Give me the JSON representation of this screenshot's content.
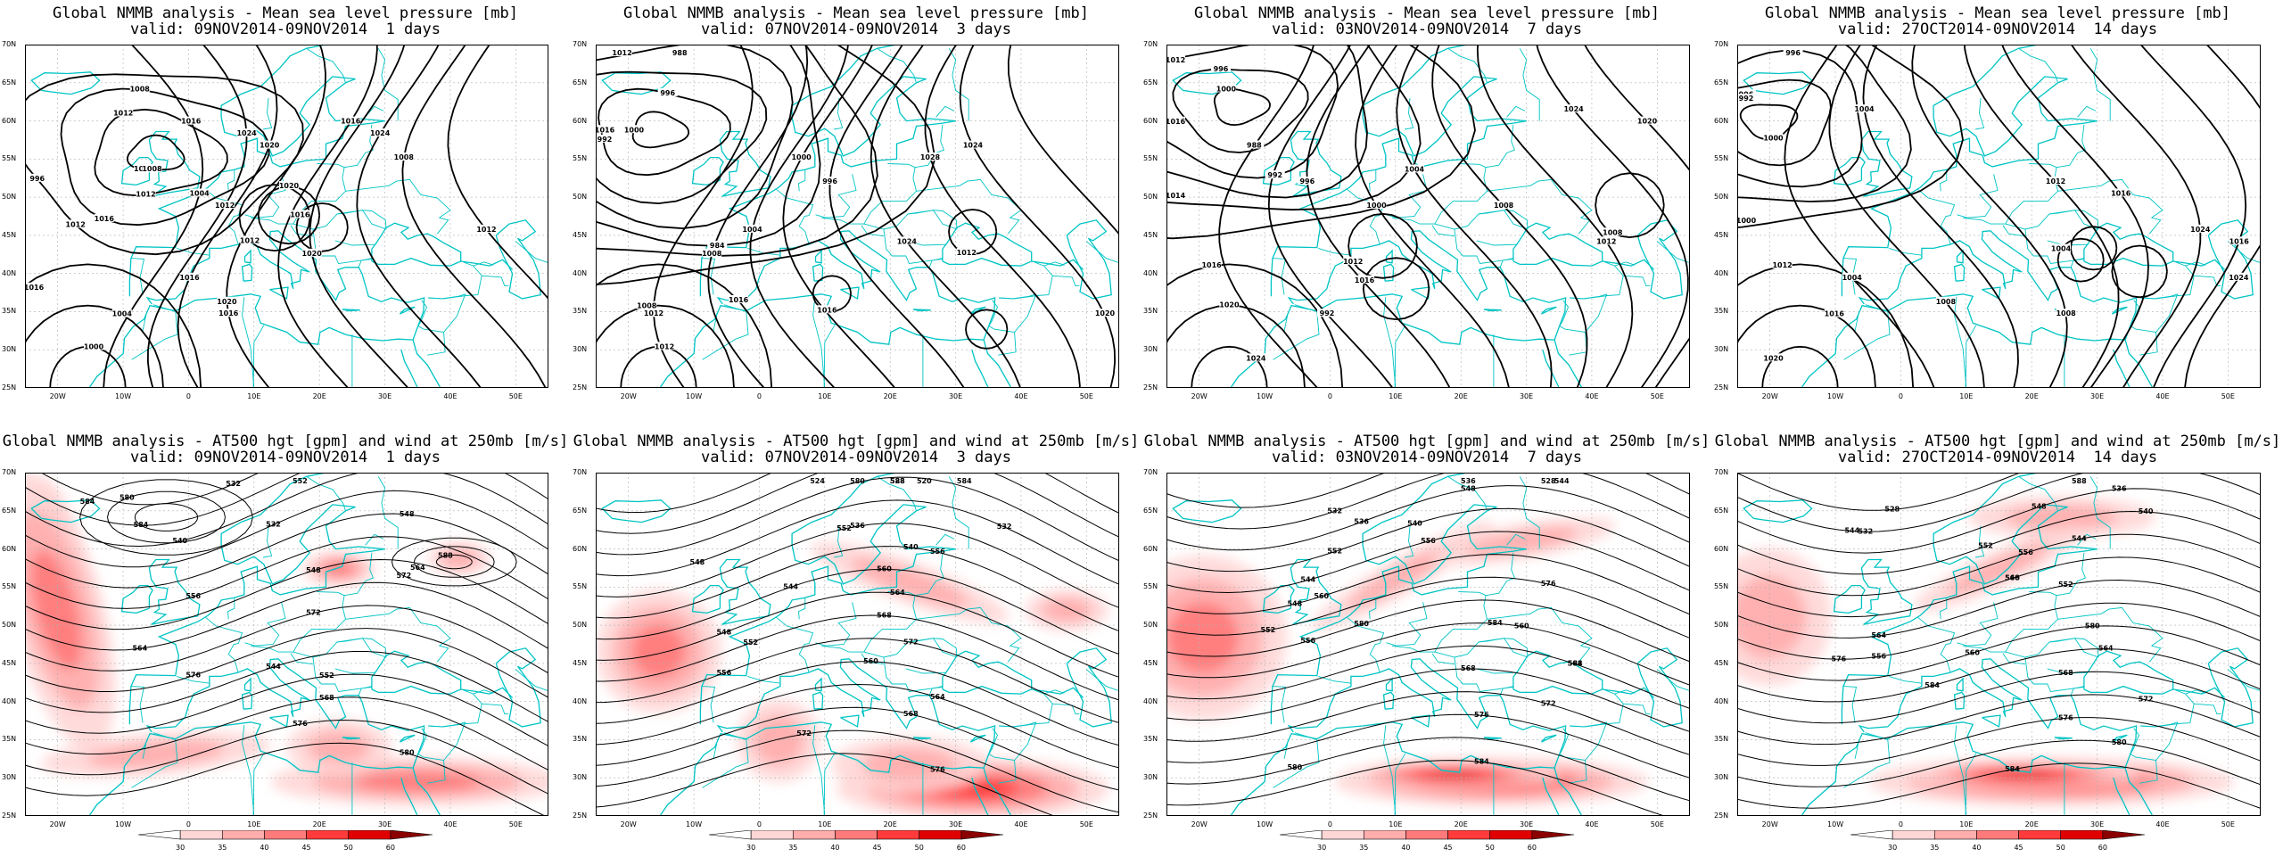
{
  "panels": [
    {
      "kind": "mslp",
      "title": "Global NMMB analysis - Mean sea level pressure [mb]",
      "subtitle": "valid: 09NOV2014-09NOV2014  1 days",
      "labels": [
        "1016",
        "1012",
        "1008",
        "996",
        "1004",
        "1012",
        "1016",
        "1020",
        "1016",
        "1020",
        "1024",
        "1008",
        "1012",
        "1000",
        "1004",
        "1016",
        "1012",
        "1016",
        "1020",
        "1008",
        "1012",
        "1016",
        "1012",
        "1016",
        "1024",
        "1020",
        "1016"
      ]
    },
    {
      "kind": "mslp",
      "title": "Global NMMB analysis - Mean sea level pressure [mb]",
      "subtitle": "valid: 07NOV2014-09NOV2014  3 days",
      "labels": [
        "1000",
        "996",
        "992",
        "988",
        "984",
        "1012",
        "1016",
        "1012",
        "1008",
        "1004",
        "1000",
        "996",
        "1024",
        "1028",
        "1024",
        "1020",
        "1012",
        "1008",
        "1016",
        "1012",
        "1016"
      ]
    },
    {
      "kind": "mslp",
      "title": "Global NMMB analysis - Mean sea level pressure [mb]",
      "subtitle": "valid: 03NOV2014-09NOV2014  7 days",
      "labels": [
        "1000",
        "996",
        "992",
        "1016",
        "1012",
        "1014",
        "988",
        "992",
        "996",
        "1000",
        "1004",
        "1008",
        "1012",
        "1024",
        "1020",
        "1024",
        "1020",
        "1016",
        "1012",
        "1008",
        "1016"
      ]
    },
    {
      "kind": "mslp",
      "title": "Global NMMB analysis - Mean sea level pressure [mb]",
      "subtitle": "valid: 27OCT2014-09NOV2014  14 days",
      "labels": [
        "1000",
        "996",
        "992",
        "996",
        "1000",
        "1004",
        "1008",
        "1004",
        "1008",
        "1012",
        "1016",
        "1024",
        "1016",
        "1024",
        "1020",
        "1016",
        "1012",
        "1004"
      ]
    },
    {
      "kind": "z500",
      "title": "Global NMMB analysis - AT500 hgt [gpm] and wind at 250mb [m/s]",
      "subtitle": "valid: 09NOV2014-09NOV2014  1 days",
      "labels": [
        "532",
        "552",
        "540",
        "532",
        "548",
        "556",
        "548",
        "564",
        "572",
        "576",
        "544",
        "552",
        "568",
        "576",
        "580",
        "584",
        "580",
        "584",
        "588",
        "564",
        "572"
      ]
    },
    {
      "kind": "z500",
      "title": "Global NMMB analysis - AT500 hgt [gpm] and wind at 250mb [m/s]",
      "subtitle": "valid: 07NOV2014-09NOV2014  3 days",
      "labels": [
        "528",
        "524",
        "520",
        "532",
        "536",
        "540",
        "544",
        "548",
        "552",
        "556",
        "560",
        "564",
        "568",
        "572",
        "576",
        "580",
        "584",
        "588",
        "548",
        "552",
        "556",
        "560",
        "564",
        "568",
        "572"
      ]
    },
    {
      "kind": "z500",
      "title": "Global NMMB analysis - AT500 hgt [gpm] and wind at 250mb [m/s]",
      "subtitle": "valid: 03NOV2014-09NOV2014  7 days",
      "labels": [
        "528",
        "532",
        "536",
        "540",
        "544",
        "548",
        "552",
        "556",
        "560",
        "564",
        "568",
        "572",
        "576",
        "580",
        "584",
        "536",
        "544",
        "548",
        "552",
        "556",
        "560",
        "576",
        "580",
        "584",
        "588"
      ]
    },
    {
      "kind": "z500",
      "title": "Global NMMB analysis - AT500 hgt [gpm] and wind at 250mb [m/s]",
      "subtitle": "valid: 27OCT2014-09NOV2014  14 days",
      "labels": [
        "528",
        "532",
        "536",
        "540",
        "544",
        "548",
        "552",
        "556",
        "560",
        "564",
        "568",
        "572",
        "576",
        "580",
        "584",
        "588",
        "544",
        "548",
        "552",
        "556",
        "560",
        "564",
        "576",
        "580",
        "584"
      ]
    }
  ],
  "axes": {
    "lat_ticks": [
      "70N",
      "65N",
      "60N",
      "55N",
      "50N",
      "45N",
      "40N",
      "35N",
      "30N",
      "25N"
    ],
    "lon_ticks": [
      "20W",
      "10W",
      "0",
      "10E",
      "20E",
      "30E",
      "40E",
      "50E"
    ]
  },
  "colorbar": {
    "ticks": [
      "30",
      "35",
      "40",
      "45",
      "50",
      "60"
    ],
    "colors": [
      "#ffffff",
      "#ffd6d6",
      "#ffadad",
      "#ff7a7a",
      "#ff3b3b",
      "#e00000",
      "#8b0000"
    ]
  },
  "colors": {
    "coast": "#00c4c4",
    "contour": "#000000",
    "grid": "#b0b0b0"
  }
}
